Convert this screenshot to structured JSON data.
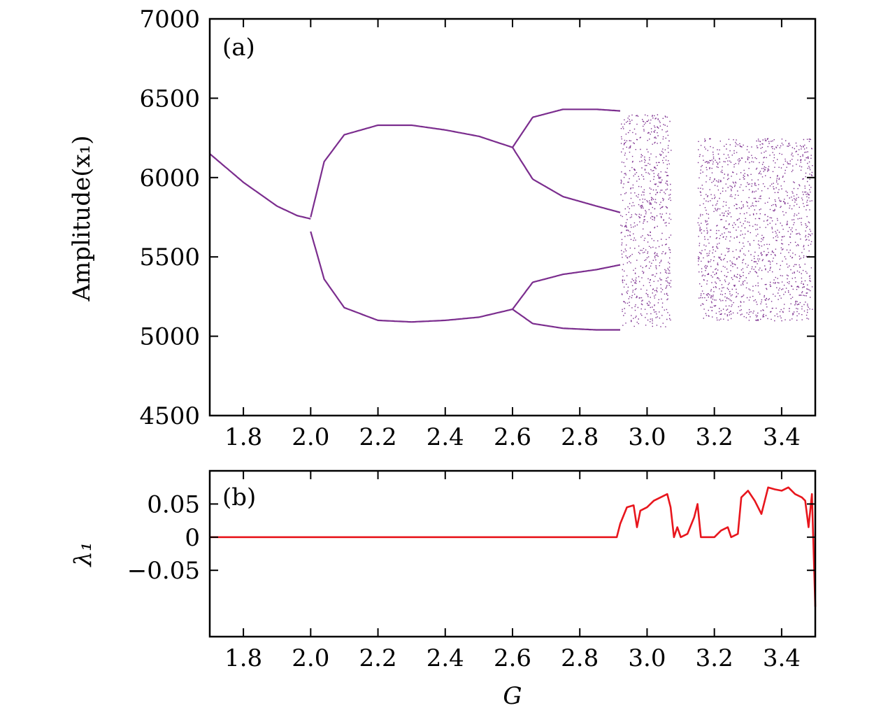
{
  "chart_data": [
    {
      "type": "scatter",
      "panel_label": "(a)",
      "title": "",
      "xlabel": "",
      "ylabel": "Amplitude(x₁)",
      "xlim": [
        1.7,
        3.5
      ],
      "ylim": [
        4500,
        7000
      ],
      "xticks": [
        1.8,
        2.0,
        2.2,
        2.4,
        2.6,
        2.8,
        3.0,
        3.2,
        3.4
      ],
      "xtick_labels": [
        "1.8",
        "2.0",
        "2.2",
        "2.4",
        "2.6",
        "2.8",
        "3.0",
        "3.2",
        "3.4"
      ],
      "yticks": [
        4500,
        5000,
        5500,
        6000,
        6500,
        7000
      ],
      "ytick_labels": [
        "4500",
        "5000",
        "5500",
        "6000",
        "6500",
        "7000"
      ],
      "color": "#7b2d8e",
      "branches": [
        {
          "x": [
            1.7,
            1.8,
            1.9,
            1.96,
            2.0
          ],
          "y": [
            6150,
            5970,
            5820,
            5760,
            5740
          ]
        },
        {
          "x": [
            2.0,
            2.04,
            2.1,
            2.2,
            2.3,
            2.4,
            2.5,
            2.6
          ],
          "y": [
            5750,
            6100,
            6270,
            6330,
            6330,
            6300,
            6260,
            6190
          ]
        },
        {
          "x": [
            2.0,
            2.04,
            2.1,
            2.2,
            2.3,
            2.4,
            2.5,
            2.6
          ],
          "y": [
            5660,
            5360,
            5180,
            5100,
            5090,
            5100,
            5120,
            5170
          ]
        },
        {
          "x": [
            2.6,
            2.66,
            2.75,
            2.85,
            2.92
          ],
          "y": [
            6190,
            6380,
            6430,
            6430,
            6420
          ]
        },
        {
          "x": [
            2.6,
            2.66,
            2.75,
            2.85,
            2.92
          ],
          "y": [
            6190,
            5990,
            5880,
            5820,
            5780
          ]
        },
        {
          "x": [
            2.6,
            2.66,
            2.75,
            2.85,
            2.92
          ],
          "y": [
            5170,
            5340,
            5390,
            5420,
            5450
          ]
        },
        {
          "x": [
            2.6,
            2.66,
            2.75,
            2.85,
            2.92
          ],
          "y": [
            5170,
            5080,
            5050,
            5040,
            5040
          ]
        }
      ],
      "chaotic_bands": [
        {
          "x": [
            2.92,
            3.07
          ],
          "y": [
            5060,
            6400
          ]
        },
        {
          "x": [
            3.15,
            3.49
          ],
          "y": [
            5100,
            6250
          ]
        }
      ]
    },
    {
      "type": "line",
      "panel_label": "(b)",
      "title": "",
      "xlabel": "G",
      "ylabel": "λ₁",
      "xlim": [
        1.7,
        3.5
      ],
      "ylim": [
        -0.15,
        0.1
      ],
      "xticks": [
        1.8,
        2.0,
        2.2,
        2.4,
        2.6,
        2.8,
        3.0,
        3.2,
        3.4
      ],
      "xtick_labels": [
        "1.8",
        "2.0",
        "2.2",
        "2.4",
        "2.6",
        "2.8",
        "3.0",
        "3.2",
        "3.4"
      ],
      "yticks": [
        0.05,
        0,
        -0.05
      ],
      "ytick_labels": [
        "0.05",
        "0",
        "−0.05"
      ],
      "color": "#e8161d",
      "series": [
        {
          "x": [
            1.7,
            2.0,
            2.4,
            2.8,
            2.91,
            2.92,
            2.94,
            2.96,
            2.97,
            2.98,
            3.0,
            3.02,
            3.04,
            3.06,
            3.07,
            3.08,
            3.09,
            3.1,
            3.12,
            3.14,
            3.15,
            3.16,
            3.2,
            3.22,
            3.24,
            3.25,
            3.27,
            3.28,
            3.3,
            3.32,
            3.34,
            3.36,
            3.38,
            3.4,
            3.42,
            3.44,
            3.46,
            3.47,
            3.48,
            3.49,
            3.5
          ],
          "y": [
            0,
            0,
            0,
            0,
            0,
            0.02,
            0.045,
            0.048,
            0.015,
            0.04,
            0.045,
            0.055,
            0.06,
            0.065,
            0.045,
            0.0,
            0.015,
            0.0,
            0.005,
            0.03,
            0.05,
            0.0,
            0.0,
            0.01,
            0.015,
            0.0,
            0.005,
            0.06,
            0.07,
            0.055,
            0.035,
            0.075,
            0.072,
            0.07,
            0.075,
            0.065,
            0.06,
            0.055,
            0.015,
            0.065,
            -0.105
          ]
        }
      ]
    }
  ]
}
